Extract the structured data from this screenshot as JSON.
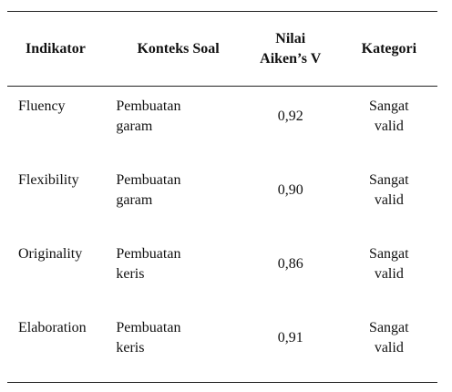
{
  "table": {
    "headers": [
      "Indikator",
      "Konteks Soal",
      "Nilai Aiken’s V",
      "Kategori"
    ],
    "rows": [
      [
        "Fluency",
        "Pembuatan garam",
        "0,92",
        "Sangat valid"
      ],
      [
        "Flexibility",
        "Pembuatan garam",
        "0,90",
        "Sangat valid"
      ],
      [
        "Originality",
        "Pembuatan keris",
        "0,86",
        "Sangat valid"
      ],
      [
        "Elaboration",
        "Pembuatan keris",
        "0,91",
        "Sangat valid"
      ]
    ]
  }
}
